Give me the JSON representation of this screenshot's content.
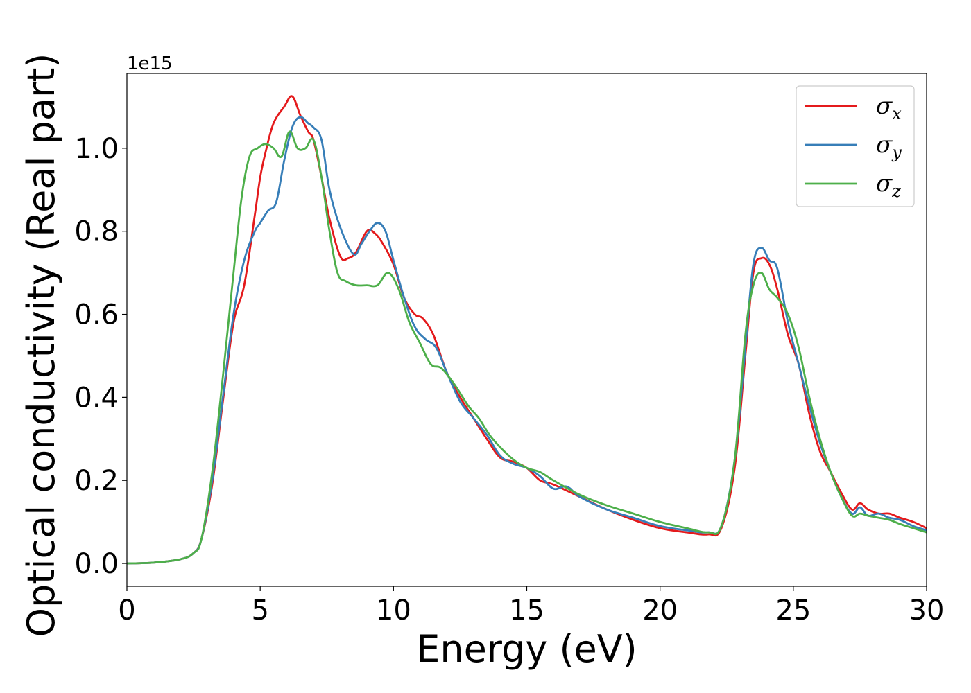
{
  "chart_data": {
    "type": "line",
    "xlabel": "Energy (eV)",
    "ylabel": "Optical conductivity (Real part)",
    "y_offset_text": "1e15",
    "xlim": [
      0,
      30
    ],
    "ylim": [
      -0.055,
      1.18
    ],
    "xticks": [
      0,
      5,
      10,
      15,
      20,
      25,
      30
    ],
    "xtick_labels": [
      "0",
      "5",
      "10",
      "15",
      "20",
      "25",
      "30"
    ],
    "yticks": [
      0.0,
      0.2,
      0.4,
      0.6,
      0.8,
      1.0
    ],
    "ytick_labels": [
      "0.0",
      "0.2",
      "0.4",
      "0.6",
      "0.8",
      "1.0"
    ],
    "legend_position": "top-right",
    "grid": false,
    "series": [
      {
        "name": "σ_x",
        "legend_symbol": "σ",
        "legend_sub": "x",
        "color": "#e41a1c",
        "x": [
          0,
          1,
          2,
          2.5,
          2.8,
          3.2,
          3.6,
          4.0,
          4.4,
          4.8,
          5.0,
          5.2,
          5.5,
          5.9,
          6.2,
          6.5,
          6.8,
          7.0,
          7.3,
          7.6,
          8.0,
          8.3,
          8.6,
          9.0,
          9.3,
          9.6,
          10.0,
          10.4,
          10.8,
          11.1,
          11.5,
          12.0,
          12.5,
          13.0,
          13.5,
          14.0,
          14.5,
          15.0,
          15.5,
          16.0,
          17.0,
          18.0,
          19.0,
          20.0,
          21.0,
          21.8,
          22.3,
          22.8,
          23.2,
          23.5,
          23.8,
          24.1,
          24.4,
          24.8,
          25.2,
          25.6,
          26.0,
          26.4,
          26.8,
          27.2,
          27.5,
          27.8,
          28.2,
          28.6,
          29.0,
          29.5,
          30.0
        ],
        "values": [
          0.0,
          0.002,
          0.01,
          0.025,
          0.06,
          0.19,
          0.39,
          0.58,
          0.67,
          0.84,
          0.93,
          0.99,
          1.06,
          1.1,
          1.125,
          1.08,
          1.04,
          1.02,
          0.93,
          0.83,
          0.74,
          0.735,
          0.75,
          0.8,
          0.795,
          0.77,
          0.72,
          0.64,
          0.6,
          0.59,
          0.55,
          0.46,
          0.4,
          0.35,
          0.3,
          0.255,
          0.245,
          0.23,
          0.2,
          0.19,
          0.16,
          0.13,
          0.105,
          0.085,
          0.075,
          0.07,
          0.085,
          0.23,
          0.5,
          0.7,
          0.735,
          0.72,
          0.66,
          0.55,
          0.48,
          0.36,
          0.27,
          0.22,
          0.17,
          0.13,
          0.145,
          0.13,
          0.12,
          0.12,
          0.11,
          0.1,
          0.085
        ]
      },
      {
        "name": "σ_y",
        "legend_symbol": "σ",
        "legend_sub": "y",
        "color": "#377eb8",
        "x": [
          0,
          1,
          2,
          2.5,
          2.8,
          3.2,
          3.6,
          4.0,
          4.4,
          4.8,
          5.0,
          5.3,
          5.6,
          5.9,
          6.2,
          6.5,
          6.8,
          7.0,
          7.3,
          7.6,
          8.0,
          8.5,
          8.8,
          9.1,
          9.4,
          9.7,
          10.0,
          10.4,
          10.8,
          11.2,
          11.6,
          12.0,
          12.5,
          13.0,
          13.5,
          14.0,
          14.5,
          15.0,
          15.5,
          16.0,
          16.5,
          17.0,
          18.0,
          19.0,
          20.0,
          21.0,
          21.8,
          22.3,
          22.8,
          23.2,
          23.5,
          23.8,
          24.1,
          24.4,
          24.8,
          25.2,
          25.6,
          26.0,
          26.4,
          26.8,
          27.2,
          27.5,
          27.8,
          28.2,
          28.6,
          29.0,
          29.5,
          30.0
        ],
        "values": [
          0.0,
          0.002,
          0.01,
          0.025,
          0.06,
          0.2,
          0.4,
          0.6,
          0.73,
          0.8,
          0.82,
          0.85,
          0.87,
          0.97,
          1.05,
          1.075,
          1.06,
          1.05,
          1.02,
          0.9,
          0.81,
          0.745,
          0.77,
          0.8,
          0.82,
          0.8,
          0.73,
          0.64,
          0.57,
          0.54,
          0.52,
          0.46,
          0.39,
          0.35,
          0.31,
          0.26,
          0.24,
          0.23,
          0.21,
          0.18,
          0.185,
          0.16,
          0.13,
          0.11,
          0.09,
          0.08,
          0.075,
          0.09,
          0.25,
          0.52,
          0.72,
          0.76,
          0.73,
          0.71,
          0.58,
          0.48,
          0.38,
          0.29,
          0.22,
          0.16,
          0.12,
          0.135,
          0.115,
          0.12,
          0.11,
          0.105,
          0.09,
          0.08
        ]
      },
      {
        "name": "σ_z",
        "legend_symbol": "σ",
        "legend_sub": "z",
        "color": "#4daf4a",
        "x": [
          0,
          1,
          2,
          2.5,
          2.8,
          3.2,
          3.6,
          4.0,
          4.3,
          4.6,
          4.9,
          5.2,
          5.5,
          5.8,
          6.1,
          6.4,
          6.7,
          7.0,
          7.3,
          7.6,
          7.9,
          8.2,
          8.6,
          9.0,
          9.4,
          9.8,
          10.2,
          10.6,
          11.0,
          11.4,
          11.8,
          12.3,
          12.8,
          13.2,
          13.6,
          14.0,
          14.5,
          15.0,
          15.5,
          16.0,
          17.0,
          18.0,
          19.0,
          20.0,
          21.0,
          21.8,
          22.3,
          22.8,
          23.2,
          23.5,
          23.8,
          24.1,
          24.4,
          24.8,
          25.2,
          25.6,
          26.0,
          26.4,
          26.8,
          27.2,
          27.5,
          27.8,
          28.2,
          28.6,
          29.0,
          29.5,
          30.0
        ],
        "values": [
          0.0,
          0.002,
          0.01,
          0.025,
          0.06,
          0.22,
          0.45,
          0.7,
          0.88,
          0.98,
          1.0,
          1.01,
          1.0,
          0.98,
          1.04,
          1.0,
          1.0,
          1.02,
          0.93,
          0.8,
          0.7,
          0.68,
          0.67,
          0.67,
          0.67,
          0.7,
          0.66,
          0.58,
          0.53,
          0.48,
          0.47,
          0.43,
          0.38,
          0.35,
          0.31,
          0.28,
          0.25,
          0.23,
          0.22,
          0.2,
          0.165,
          0.14,
          0.12,
          0.1,
          0.085,
          0.075,
          0.09,
          0.25,
          0.55,
          0.67,
          0.7,
          0.66,
          0.64,
          0.6,
          0.52,
          0.4,
          0.3,
          0.22,
          0.16,
          0.115,
          0.12,
          0.115,
          0.11,
          0.105,
          0.095,
          0.085,
          0.075
        ]
      }
    ]
  }
}
